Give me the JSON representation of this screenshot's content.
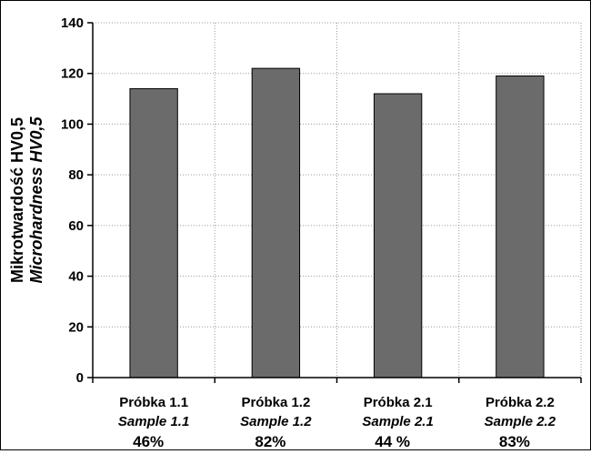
{
  "chart_data": {
    "type": "bar",
    "categories": [
      {
        "name": "Próbka 1.1",
        "name_en": "Sample 1.1",
        "note": "46%"
      },
      {
        "name": "Próbka 1.2",
        "name_en": "Sample 1.2",
        "note": "82%"
      },
      {
        "name": "Próbka 2.1",
        "name_en": "Sample 2.1",
        "note": "44 %"
      },
      {
        "name": "Próbka 2.2",
        "name_en": "Sample 2.2",
        "note": "83%"
      }
    ],
    "values": [
      114,
      122,
      112,
      119
    ],
    "ylabel": "Mikrotwardość HV0,5",
    "ylabel_en": "Microhardness HV0,5",
    "ylim": [
      0,
      140
    ],
    "yticks": [
      0,
      20,
      40,
      60,
      80,
      100,
      120,
      140
    ],
    "grid": true,
    "bar_color": "#6b6b6b"
  }
}
